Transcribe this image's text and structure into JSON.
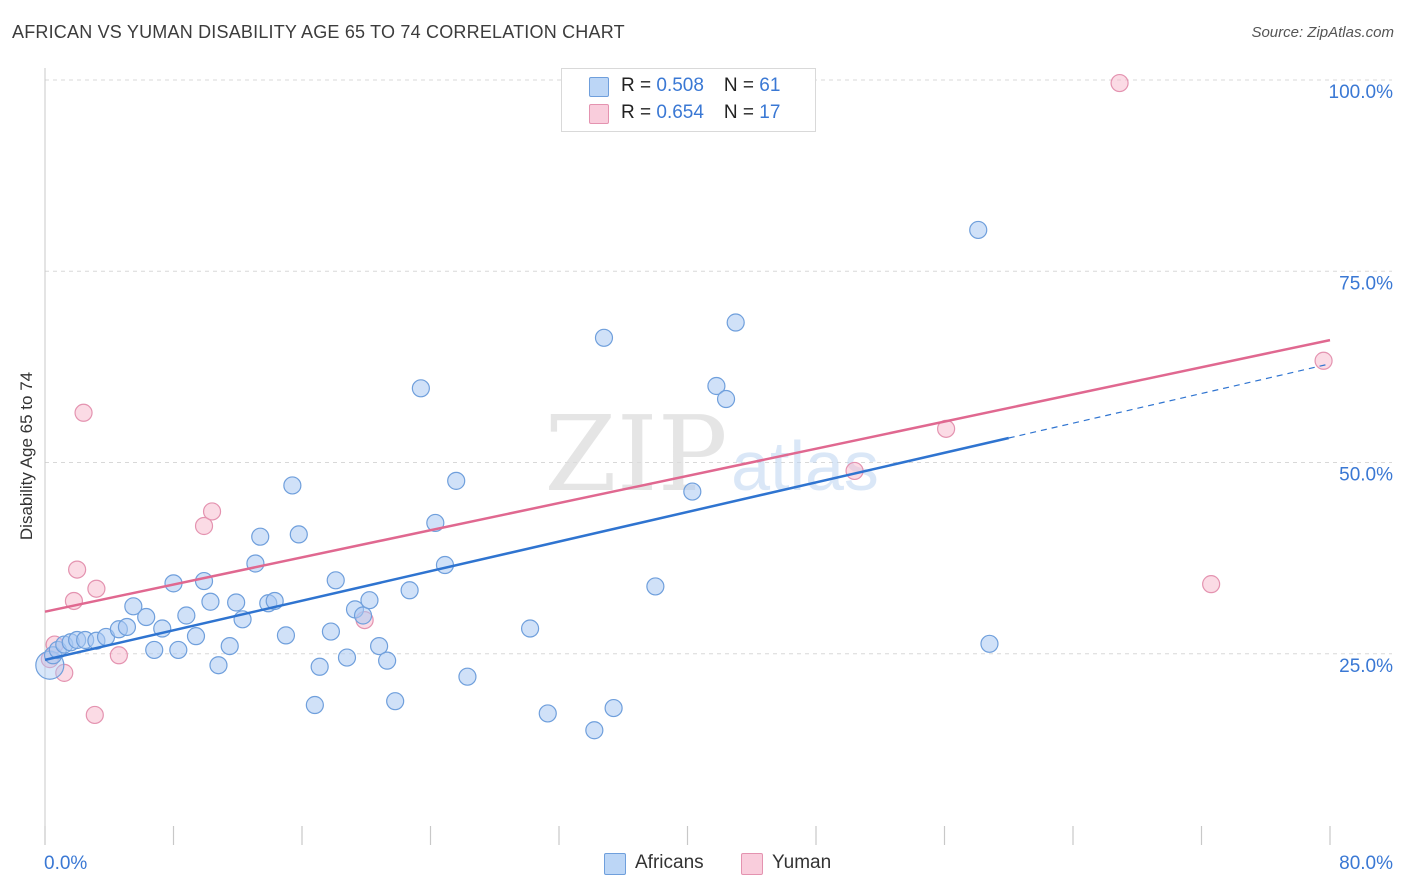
{
  "header": {
    "title": "AFRICAN VS YUMAN DISABILITY AGE 65 TO 74 CORRELATION CHART",
    "source": "Source: ZipAtlas.com"
  },
  "watermark": {
    "zip": "ZIP",
    "atlas": "atlas"
  },
  "legend_top": [
    {
      "r_label": "R = ",
      "r_value": "0.508",
      "n_label": "N = ",
      "n_value": "61"
    },
    {
      "r_label": "R = ",
      "r_value": "0.654",
      "n_label": "N = ",
      "n_value": "17"
    }
  ],
  "legend_bottom": [
    "Africans",
    "Yuman"
  ],
  "colors": {
    "africans_fill": "#a9c9f3",
    "africans_stroke": "#6f9fdc",
    "africans_line": "#2f74d0",
    "yuman_fill": "#f7bdd0",
    "yuman_stroke": "#e493b0",
    "yuman_line": "#e06890",
    "tick_label": "#3a78d4",
    "grid": "#d8d8d8"
  },
  "chart_data": {
    "type": "scatter",
    "title": "AFRICAN VS YUMAN DISABILITY AGE 65 TO 74 CORRELATION CHART",
    "xlabel": "",
    "ylabel": "Disability Age 65 to 74",
    "xlim": [
      0,
      80
    ],
    "ylim": [
      0,
      102
    ],
    "x_tick_labels": [
      "0.0%",
      "80.0%"
    ],
    "y_ticks": [
      25,
      50,
      75,
      100
    ],
    "y_tick_labels": [
      "25.0%",
      "50.0%",
      "75.0%",
      "100.0%"
    ],
    "grid": true,
    "legend_position": "top-center",
    "series": [
      {
        "name": "Africans",
        "r": 0.508,
        "n": 61,
        "points": [
          [
            0.3,
            23.5
          ],
          [
            0.5,
            24.8
          ],
          [
            0.8,
            25.5
          ],
          [
            1.2,
            26.2
          ],
          [
            1.6,
            26.5
          ],
          [
            2.0,
            26.8
          ],
          [
            2.5,
            26.8
          ],
          [
            3.2,
            26.7
          ],
          [
            3.8,
            27.2
          ],
          [
            4.6,
            28.2
          ],
          [
            5.1,
            28.5
          ],
          [
            5.5,
            31.2
          ],
          [
            6.3,
            29.8
          ],
          [
            6.8,
            25.5
          ],
          [
            7.3,
            28.3
          ],
          [
            8.0,
            34.2
          ],
          [
            8.3,
            25.5
          ],
          [
            8.8,
            30.0
          ],
          [
            9.4,
            27.3
          ],
          [
            9.9,
            34.5
          ],
          [
            10.3,
            31.8
          ],
          [
            10.8,
            23.5
          ],
          [
            11.5,
            26.0
          ],
          [
            11.9,
            31.7
          ],
          [
            12.3,
            29.5
          ],
          [
            13.1,
            36.8
          ],
          [
            13.4,
            40.3
          ],
          [
            13.9,
            31.6
          ],
          [
            14.3,
            31.9
          ],
          [
            15.0,
            27.4
          ],
          [
            15.4,
            47.0
          ],
          [
            15.8,
            40.6
          ],
          [
            16.8,
            18.3
          ],
          [
            17.1,
            23.3
          ],
          [
            17.8,
            27.9
          ],
          [
            18.1,
            34.6
          ],
          [
            18.8,
            24.5
          ],
          [
            19.3,
            30.8
          ],
          [
            19.8,
            30.0
          ],
          [
            20.2,
            32.0
          ],
          [
            20.8,
            26.0
          ],
          [
            21.3,
            24.1
          ],
          [
            21.8,
            18.8
          ],
          [
            22.7,
            33.3
          ],
          [
            23.4,
            59.7
          ],
          [
            24.3,
            42.1
          ],
          [
            24.9,
            36.6
          ],
          [
            25.6,
            47.6
          ],
          [
            26.3,
            22.0
          ],
          [
            30.2,
            28.3
          ],
          [
            31.3,
            17.2
          ],
          [
            34.2,
            15.0
          ],
          [
            34.8,
            66.3
          ],
          [
            35.4,
            17.9
          ],
          [
            38.0,
            33.8
          ],
          [
            40.3,
            46.2
          ],
          [
            41.8,
            60.0
          ],
          [
            42.4,
            58.3
          ],
          [
            43.0,
            68.3
          ],
          [
            58.1,
            80.4
          ],
          [
            58.8,
            26.3
          ]
        ],
        "trend_line": {
          "from": [
            0,
            24.2
          ],
          "to": [
            60,
            53.2
          ],
          "dashed_to": [
            80,
            62.9
          ]
        }
      },
      {
        "name": "Yuman",
        "r": 0.654,
        "n": 17,
        "points": [
          [
            0.3,
            24.3
          ],
          [
            0.6,
            26.2
          ],
          [
            1.2,
            22.5
          ],
          [
            1.8,
            31.9
          ],
          [
            2.0,
            36.0
          ],
          [
            2.4,
            56.5
          ],
          [
            3.1,
            17.0
          ],
          [
            3.2,
            33.5
          ],
          [
            4.6,
            24.8
          ],
          [
            9.9,
            41.7
          ],
          [
            10.4,
            43.6
          ],
          [
            19.9,
            29.4
          ],
          [
            50.4,
            48.9
          ],
          [
            56.1,
            54.4
          ],
          [
            66.9,
            99.6
          ],
          [
            72.6,
            34.1
          ],
          [
            79.6,
            63.3
          ]
        ],
        "trend_line": {
          "from": [
            0,
            30.5
          ],
          "to": [
            80,
            66.0
          ]
        }
      }
    ]
  }
}
